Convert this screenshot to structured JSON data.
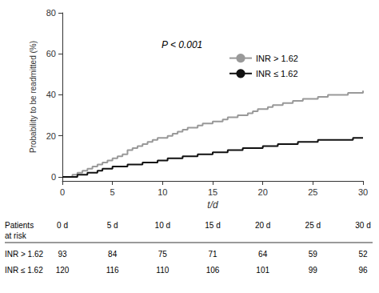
{
  "chart_data": {
    "type": "step",
    "title": "",
    "xlabel": "t/d",
    "ylabel": "Probability to be readmitted (%)",
    "xlim": [
      0,
      30
    ],
    "ylim": [
      -2,
      80
    ],
    "xticks": [
      0,
      5,
      10,
      15,
      20,
      25,
      30
    ],
    "yticks": [
      0,
      20,
      40,
      60,
      80
    ],
    "grid": false,
    "legend": "upper right",
    "annotation": "P < 0.001",
    "x": [
      0,
      0.5,
      1.0,
      1.5,
      2.0,
      2.5,
      3.0,
      3.5,
      4.0,
      4.5,
      5.0,
      5.5,
      6.0,
      6.5,
      7.0,
      7.5,
      8.0,
      8.5,
      9.0,
      9.5,
      10.0,
      10.5,
      11.0,
      11.5,
      12.0,
      12.5,
      13.0,
      13.5,
      14.0,
      14.5,
      15.0,
      15.5,
      16.0,
      16.5,
      17.0,
      17.5,
      18.0,
      18.5,
      19.0,
      19.5,
      20.0,
      20.5,
      21.0,
      21.5,
      22.0,
      22.5,
      23.0,
      23.5,
      24.0,
      24.5,
      25.0,
      25.5,
      26.0,
      26.5,
      27.0,
      27.5,
      28.0,
      28.5,
      29.0,
      29.5,
      30.0
    ],
    "series": [
      {
        "name": "INR > 1.62",
        "color": "#999999",
        "values": [
          0,
          0,
          1,
          2,
          3,
          4,
          5,
          6,
          7,
          8,
          9,
          10,
          11,
          13,
          14,
          15,
          16,
          17,
          18,
          19,
          19,
          20,
          21,
          22,
          23,
          24,
          24,
          25,
          26,
          26,
          27,
          27,
          28,
          29,
          29,
          30,
          30,
          31,
          32,
          33,
          33,
          34,
          35,
          35,
          36,
          36,
          37,
          37,
          38,
          38,
          38,
          39,
          39,
          40,
          40,
          40,
          40,
          41,
          41,
          41,
          42
        ]
      },
      {
        "name": "INR ≤ 1.62",
        "color": "#111111",
        "values": [
          0,
          0,
          0,
          1,
          1,
          2,
          2,
          3,
          4,
          4,
          5,
          5,
          5,
          6,
          6,
          6,
          7,
          7,
          7,
          8,
          8,
          9,
          9,
          9,
          10,
          10,
          10,
          11,
          11,
          11,
          12,
          12,
          12,
          13,
          13,
          13,
          14,
          14,
          14,
          14,
          15,
          15,
          15,
          16,
          16,
          16,
          16,
          17,
          17,
          17,
          17,
          18,
          18,
          18,
          18,
          18,
          18,
          18,
          19,
          19,
          19
        ]
      }
    ],
    "risk_table": {
      "title": [
        "Patients",
        "at risk"
      ],
      "columns": [
        "0 d",
        "5 d",
        "10 d",
        "15 d",
        "20 d",
        "25 d",
        "30 d"
      ],
      "rows": [
        {
          "label": "INR > 1.62",
          "values": [
            93,
            84,
            75,
            71,
            64,
            59,
            52
          ]
        },
        {
          "label": "INR ≤ 1.62",
          "values": [
            120,
            116,
            110,
            106,
            101,
            99,
            96
          ]
        }
      ]
    }
  }
}
